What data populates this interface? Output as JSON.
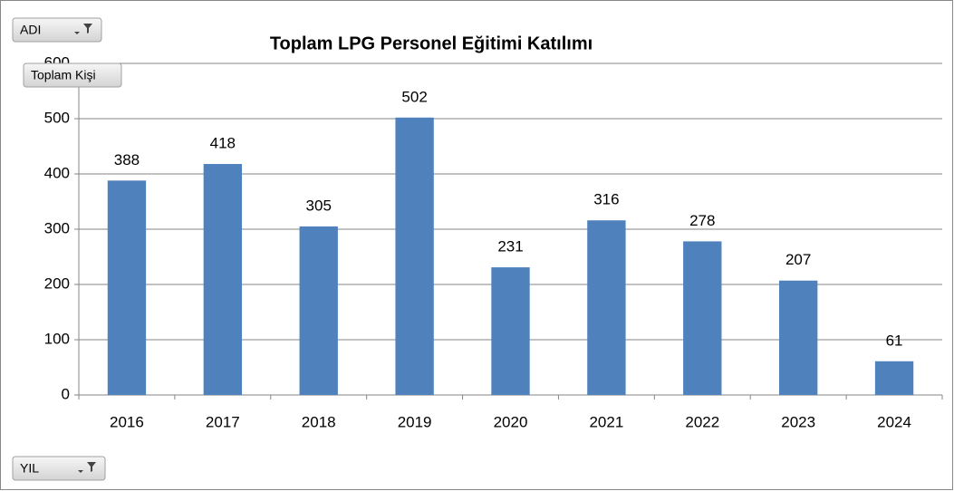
{
  "chart_data": {
    "type": "bar",
    "title": "Toplam  LPG Personel Eğitimi Katılımı",
    "categories": [
      "2016",
      "2017",
      "2018",
      "2019",
      "2020",
      "2021",
      "2022",
      "2023",
      "2024"
    ],
    "values": [
      388,
      418,
      305,
      502,
      231,
      316,
      278,
      207,
      61
    ],
    "color": "#4f81bd",
    "ylim": [
      0,
      600
    ],
    "yticks": [
      0,
      100,
      200,
      300,
      400,
      500,
      600
    ],
    "grid": true,
    "field_buttons": {
      "filter": "ADI",
      "values": "Toplam Kişi",
      "axis": "YIL"
    }
  }
}
